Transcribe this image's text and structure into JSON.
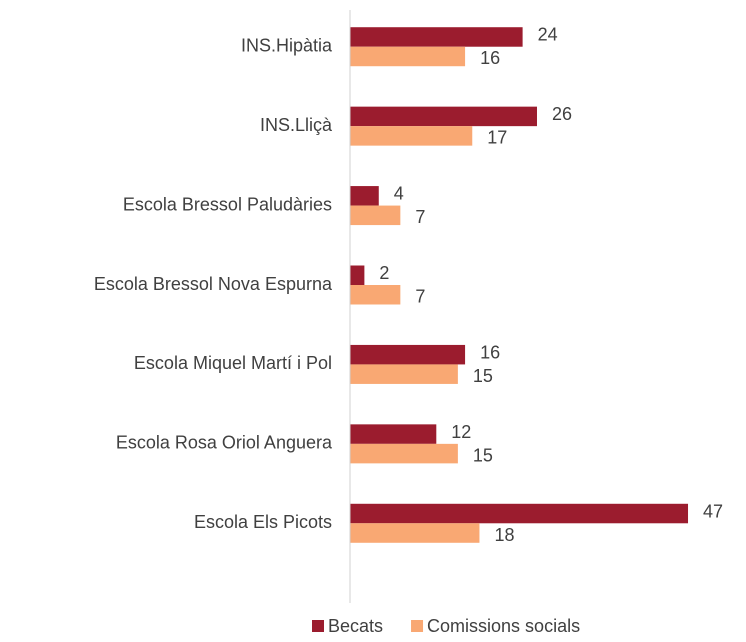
{
  "chart_data": {
    "type": "barh",
    "categories": [
      "INS.Hipàtia",
      "INS.Lliçà",
      "Escola Bressol Paludàries",
      "Escola Bressol Nova Espurna",
      "Escola Miquel Martí i Pol",
      "Escola Rosa Oriol Anguera",
      "Escola Els Picots"
    ],
    "series": [
      {
        "name": "Becats",
        "color": "#9b1c2e",
        "values": [
          24,
          26,
          4,
          2,
          16,
          12,
          47
        ]
      },
      {
        "name": "Comissions socials",
        "color": "#f9a873",
        "values": [
          16,
          17,
          7,
          7,
          15,
          15,
          18
        ]
      }
    ],
    "xlim": [
      0,
      50
    ],
    "legend": "bottom"
  }
}
